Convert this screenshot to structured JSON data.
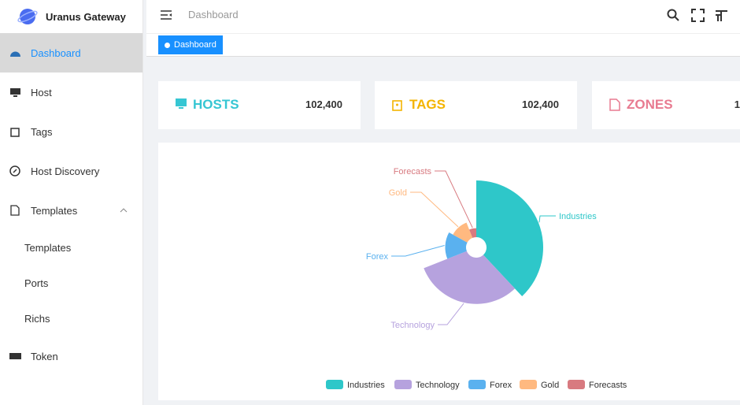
{
  "sidebar": {
    "title": "Uranus Gateway",
    "menu": [
      "Dashboard",
      "Host",
      "Tags",
      "Host Discovery",
      "Templates"
    ],
    "submenu": [
      "Templates",
      "Ports",
      "Richs"
    ],
    "last": "Token"
  },
  "header": {
    "breadcrumb": "Dashboard",
    "tab": "Dashboard"
  },
  "cards": [
    {
      "title": "HOSTS",
      "value": "102,400"
    },
    {
      "title": "TAGS",
      "value": "102,400"
    },
    {
      "title": "ZONES",
      "value": "1"
    }
  ],
  "chart": {
    "type": "pie",
    "rose": true,
    "categories": [
      "Industries",
      "Technology",
      "Forex",
      "Gold",
      "Forecasts"
    ],
    "values": [
      38,
      31,
      14,
      11,
      6
    ],
    "colors": [
      "#2ec7c9",
      "#b6a2de",
      "#5ab1ef",
      "#ffb980",
      "#d87a80"
    ]
  }
}
